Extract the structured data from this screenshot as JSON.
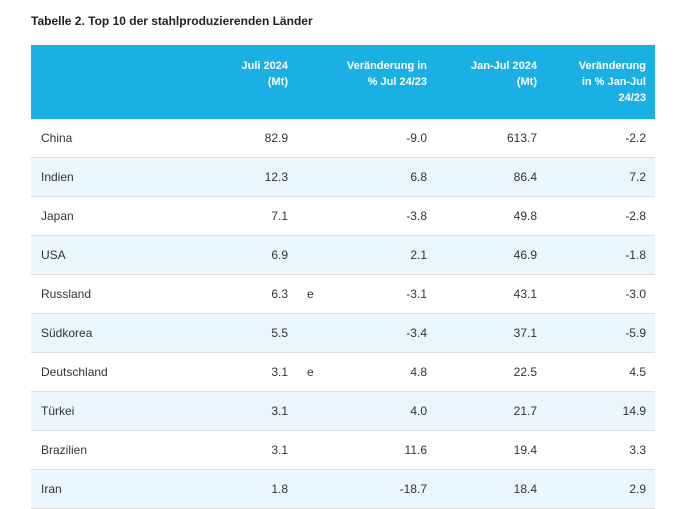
{
  "caption": "Tabelle 2. Top 10 der stahlproduzierenden Länder",
  "headers": {
    "col1": "Juli 2024\n(Mt)",
    "col2": "Veränderung in\n% Jul 24/23",
    "col3": "Jan-Jul 2024\n(Mt)",
    "col4": "Veränderung\nin % Jan-Jul\n24/23"
  },
  "rows": [
    {
      "country": "China",
      "jul": "82.9",
      "flag": "",
      "chg_jul": "-9.0",
      "janjul": "613.7",
      "chg_janjul": "-2.2"
    },
    {
      "country": "Indien",
      "jul": "12.3",
      "flag": "",
      "chg_jul": "6.8",
      "janjul": "86.4",
      "chg_janjul": "7.2"
    },
    {
      "country": "Japan",
      "jul": "7.1",
      "flag": "",
      "chg_jul": "-3.8",
      "janjul": "49.8",
      "chg_janjul": "-2.8"
    },
    {
      "country": "USA",
      "jul": "6.9",
      "flag": "",
      "chg_jul": "2.1",
      "janjul": "46.9",
      "chg_janjul": "-1.8"
    },
    {
      "country": "Russland",
      "jul": "6.3",
      "flag": "e",
      "chg_jul": "-3.1",
      "janjul": "43.1",
      "chg_janjul": "-3.0"
    },
    {
      "country": "Südkorea",
      "jul": "5.5",
      "flag": "",
      "chg_jul": "-3.4",
      "janjul": "37.1",
      "chg_janjul": "-5.9"
    },
    {
      "country": "Deutschland",
      "jul": "3.1",
      "flag": "e",
      "chg_jul": "4.8",
      "janjul": "22.5",
      "chg_janjul": "4.5"
    },
    {
      "country": "Türkei",
      "jul": "3.1",
      "flag": "",
      "chg_jul": "4.0",
      "janjul": "21.7",
      "chg_janjul": "14.9"
    },
    {
      "country": "Brazilien",
      "jul": "3.1",
      "flag": "",
      "chg_jul": "11.6",
      "janjul": "19.4",
      "chg_janjul": "3.3"
    },
    {
      "country": "Iran",
      "jul": "1.8",
      "flag": "",
      "chg_jul": "-18.7",
      "janjul": "18.4",
      "chg_janjul": "2.9"
    }
  ]
}
